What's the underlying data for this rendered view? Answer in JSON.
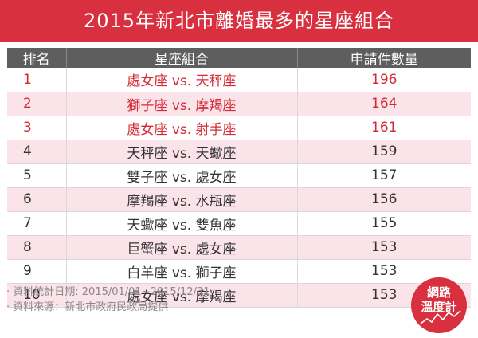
{
  "title": "2015年新北市離婚最多的星座組合",
  "headers": [
    "排名",
    "星座組合",
    "申請件數量"
  ],
  "chart_data": {
    "type": "table",
    "rows": [
      {
        "rank": "1",
        "pair": "處女座 vs. 天秤座",
        "count": 196
      },
      {
        "rank": "2",
        "pair": "獅子座 vs. 摩羯座",
        "count": 164
      },
      {
        "rank": "3",
        "pair": "處女座 vs. 射手座",
        "count": 161
      },
      {
        "rank": "4",
        "pair": "天秤座 vs. 天蠍座",
        "count": 159
      },
      {
        "rank": "5",
        "pair": "雙子座 vs. 處女座",
        "count": 157
      },
      {
        "rank": "6",
        "pair": "摩羯座 vs. 水瓶座",
        "count": 156
      },
      {
        "rank": "7",
        "pair": "天蠍座 vs. 雙魚座",
        "count": 155
      },
      {
        "rank": "8",
        "pair": "巨蟹座 vs. 處女座",
        "count": 153
      },
      {
        "rank": "9",
        "pair": "白羊座 vs. 獅子座",
        "count": 153
      },
      {
        "rank": "10",
        "pair": "處女座 vs. 摩羯座",
        "count": 153
      }
    ],
    "highlight_color": "#d52a36",
    "stripe_color": "#fbe3ea"
  },
  "footer": {
    "date_note": "· 資料統計日期: 2015/01/01~2015/12/31",
    "source_note": "· 資料來源：新北市政府民政局提供"
  },
  "logo": {
    "line1": "網路",
    "line2": "溫度計",
    "color": "#d8303f"
  }
}
